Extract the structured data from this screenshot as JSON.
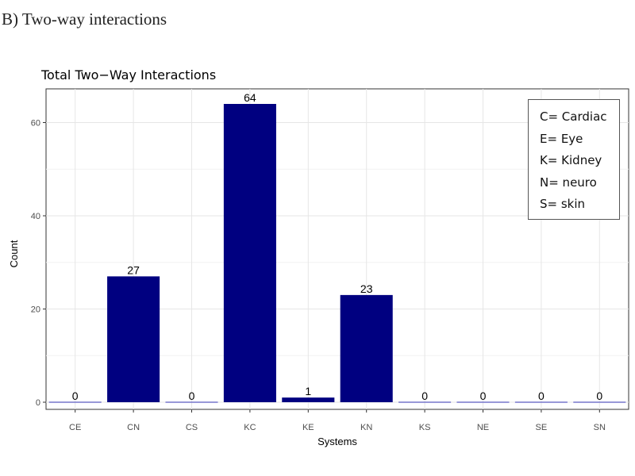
{
  "panel": {
    "heading": "B)  Two-way interactions"
  },
  "chart_data": {
    "type": "bar",
    "title": "Total Two−Way Interactions",
    "xlabel": "Systems",
    "ylabel": "Count",
    "categories": [
      "CE",
      "CN",
      "CS",
      "KC",
      "KE",
      "KN",
      "KS",
      "NE",
      "SE",
      "SN"
    ],
    "values": [
      0,
      27,
      0,
      64,
      1,
      23,
      0,
      0,
      0,
      0
    ],
    "data_labels": [
      "0",
      "27",
      "0",
      "64",
      "1",
      "23",
      "0",
      "0",
      "0",
      "0"
    ],
    "yticks": [
      0,
      20,
      40,
      60
    ],
    "ylim": [
      0,
      64
    ],
    "grid": true,
    "bar_color": "#000080",
    "zero_bar_color": "#7777cc",
    "legend_position": "top-right",
    "legend": [
      "C= Cardiac",
      "E= Eye",
      "K= Kidney",
      "N= neuro",
      "S= skin"
    ]
  }
}
